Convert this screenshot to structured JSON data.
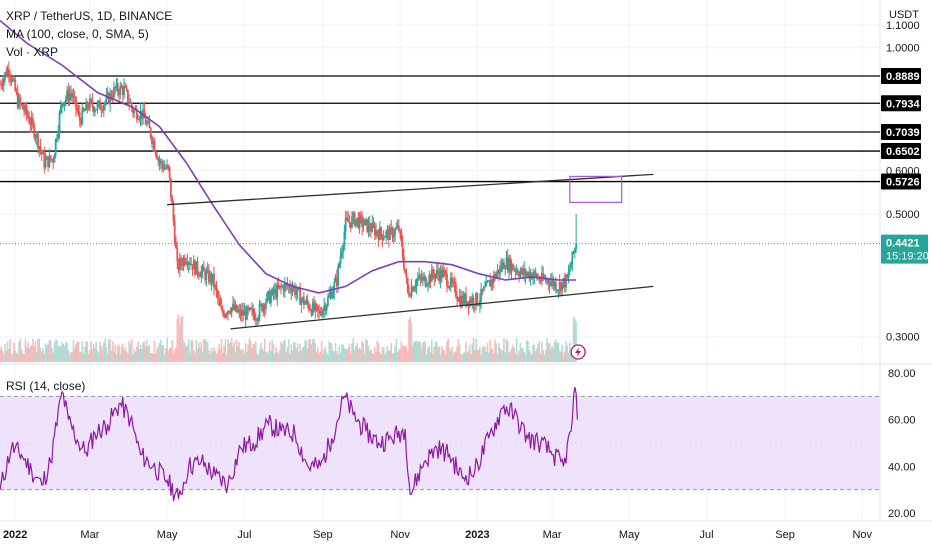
{
  "header": {
    "symbol_line": "XRP / TetherUS, 1D, BINANCE",
    "ma_label": "MA (100, close, 0, SMA, 5)",
    "vol_label": "Vol · XRP",
    "rsi_label": "RSI (14, close)"
  },
  "colors": {
    "up": "#26a69a",
    "down": "#ef5350",
    "ma": "#7e3fb6",
    "rsi": "#8e1aa0",
    "rsi_band": "#efe3fb",
    "price_line": "#26a69a",
    "levels": "#000000",
    "trend": "#303030",
    "box": "#a55ad6"
  },
  "chart_data": [
    {
      "type": "candlestick",
      "title": "XRP / TetherUS, 1D, BINANCE",
      "currency": "USDT",
      "scale": "log",
      "ylim": [
        0.27,
        1.22
      ],
      "y_ticks": [
        "1.1000",
        "1.0000",
        "0.6000",
        "0.5000",
        "0.3000"
      ],
      "x_ticks": [
        "2022",
        "Mar",
        "May",
        "Jul",
        "Sep",
        "Nov",
        "2023",
        "Mar",
        "May",
        "Jul",
        "Sep",
        "Nov"
      ],
      "x_tick_dates": [
        "2022-01-01",
        "2022-03-01",
        "2022-05-01",
        "2022-07-01",
        "2022-09-01",
        "2022-11-01",
        "2023-01-01",
        "2023-03-01",
        "2023-05-01",
        "2023-07-01",
        "2023-09-01",
        "2023-11-01"
      ],
      "xlim": [
        "2021-12-20",
        "2023-11-15"
      ],
      "series": [
        {
          "name": "XRP / TetherUS",
          "close_path": [
            [
              "2021-12-20",
              0.86
            ],
            [
              "2021-12-27",
              0.92
            ],
            [
              "2022-01-03",
              0.8
            ],
            [
              "2022-01-10",
              0.76
            ],
            [
              "2022-01-17",
              0.7
            ],
            [
              "2022-01-24",
              0.62
            ],
            [
              "2022-01-31",
              0.63
            ],
            [
              "2022-02-07",
              0.8
            ],
            [
              "2022-02-14",
              0.83
            ],
            [
              "2022-02-21",
              0.74
            ],
            [
              "2022-02-28",
              0.79
            ],
            [
              "2022-03-07",
              0.78
            ],
            [
              "2022-03-14",
              0.8
            ],
            [
              "2022-03-21",
              0.84
            ],
            [
              "2022-03-28",
              0.84
            ],
            [
              "2022-04-04",
              0.77
            ],
            [
              "2022-04-11",
              0.76
            ],
            [
              "2022-04-18",
              0.7
            ],
            [
              "2022-04-25",
              0.62
            ],
            [
              "2022-05-02",
              0.6
            ],
            [
              "2022-05-09",
              0.4
            ],
            [
              "2022-05-16",
              0.42
            ],
            [
              "2022-05-23",
              0.4
            ],
            [
              "2022-05-30",
              0.39
            ],
            [
              "2022-06-06",
              0.38
            ],
            [
              "2022-06-13",
              0.33
            ],
            [
              "2022-06-20",
              0.34
            ],
            [
              "2022-06-27",
              0.33
            ],
            [
              "2022-07-04",
              0.33
            ],
            [
              "2022-07-11",
              0.33
            ],
            [
              "2022-07-18",
              0.35
            ],
            [
              "2022-07-25",
              0.36
            ],
            [
              "2022-08-01",
              0.37
            ],
            [
              "2022-08-08",
              0.37
            ],
            [
              "2022-08-15",
              0.35
            ],
            [
              "2022-08-22",
              0.34
            ],
            [
              "2022-08-29",
              0.33
            ],
            [
              "2022-09-05",
              0.35
            ],
            [
              "2022-09-12",
              0.38
            ],
            [
              "2022-09-19",
              0.48
            ],
            [
              "2022-09-26",
              0.49
            ],
            [
              "2022-10-03",
              0.48
            ],
            [
              "2022-10-10",
              0.47
            ],
            [
              "2022-10-17",
              0.46
            ],
            [
              "2022-10-24",
              0.46
            ],
            [
              "2022-10-31",
              0.47
            ],
            [
              "2022-11-07",
              0.36
            ],
            [
              "2022-11-14",
              0.38
            ],
            [
              "2022-11-21",
              0.38
            ],
            [
              "2022-11-28",
              0.39
            ],
            [
              "2022-12-05",
              0.39
            ],
            [
              "2022-12-12",
              0.37
            ],
            [
              "2022-12-19",
              0.35
            ],
            [
              "2022-12-26",
              0.35
            ],
            [
              "2023-01-02",
              0.35
            ],
            [
              "2023-01-09",
              0.37
            ],
            [
              "2023-01-16",
              0.39
            ],
            [
              "2023-01-23",
              0.41
            ],
            [
              "2023-01-30",
              0.4
            ],
            [
              "2023-02-06",
              0.39
            ],
            [
              "2023-02-13",
              0.39
            ],
            [
              "2023-02-20",
              0.38
            ],
            [
              "2023-02-27",
              0.38
            ],
            [
              "2023-03-06",
              0.37
            ],
            [
              "2023-03-13",
              0.38
            ],
            [
              "2023-03-20",
              0.4421
            ]
          ],
          "last_price": "0.4421",
          "countdown": "15:19:20"
        }
      ],
      "moving_average": {
        "name": "MA (100, close, 0, SMA, 5)",
        "points": [
          [
            "2021-12-20",
            1.12
          ],
          [
            "2022-01-10",
            1.02
          ],
          [
            "2022-02-07",
            0.93
          ],
          [
            "2022-03-07",
            0.83
          ],
          [
            "2022-04-04",
            0.78
          ],
          [
            "2022-04-25",
            0.72
          ],
          [
            "2022-05-16",
            0.62
          ],
          [
            "2022-06-06",
            0.52
          ],
          [
            "2022-06-27",
            0.44
          ],
          [
            "2022-07-18",
            0.39
          ],
          [
            "2022-08-08",
            0.37
          ],
          [
            "2022-08-29",
            0.36
          ],
          [
            "2022-09-19",
            0.37
          ],
          [
            "2022-10-10",
            0.395
          ],
          [
            "2022-10-31",
            0.41
          ],
          [
            "2022-11-21",
            0.41
          ],
          [
            "2022-12-12",
            0.405
          ],
          [
            "2023-01-02",
            0.39
          ],
          [
            "2023-01-23",
            0.38
          ],
          [
            "2023-02-13",
            0.385
          ],
          [
            "2023-03-06",
            0.38
          ],
          [
            "2023-03-20",
            0.38
          ]
        ]
      },
      "horizontal_levels": [
        "0.8889",
        "0.7934",
        "0.7039",
        "0.6502",
        "0.5726"
      ],
      "trendlines": [
        {
          "from": [
            "2022-05-01",
            0.52
          ],
          "to": [
            "2023-05-20",
            0.59
          ]
        },
        {
          "from": [
            "2022-06-20",
            0.31
          ],
          "to": [
            "2023-05-20",
            0.37
          ]
        }
      ],
      "target_box": {
        "x": [
          "2023-03-15",
          "2023-04-25"
        ],
        "y": [
          0.525,
          0.585
        ]
      },
      "volume": {
        "name": "Vol · XRP"
      }
    },
    {
      "type": "line",
      "title": "RSI (14, close)",
      "ylim": [
        17,
        83
      ],
      "y_ticks": [
        "80.00",
        "60.00",
        "40.00",
        "20.00"
      ],
      "band": [
        30,
        70
      ],
      "series": [
        {
          "name": "RSI (14, close)",
          "points": [
            [
              "2021-12-20",
              30
            ],
            [
              "2021-12-29",
              48
            ],
            [
              "2022-01-06",
              45
            ],
            [
              "2022-01-14",
              38
            ],
            [
              "2022-01-22",
              32
            ],
            [
              "2022-01-29",
              42
            ],
            [
              "2022-02-07",
              72
            ],
            [
              "2022-02-12",
              60
            ],
            [
              "2022-02-20",
              50
            ],
            [
              "2022-02-26",
              46
            ],
            [
              "2022-03-05",
              54
            ],
            [
              "2022-03-15",
              58
            ],
            [
              "2022-03-25",
              67
            ],
            [
              "2022-04-02",
              60
            ],
            [
              "2022-04-10",
              45
            ],
            [
              "2022-04-20",
              40
            ],
            [
              "2022-05-01",
              34
            ],
            [
              "2022-05-10",
              26
            ],
            [
              "2022-05-18",
              40
            ],
            [
              "2022-05-28",
              42
            ],
            [
              "2022-06-08",
              36
            ],
            [
              "2022-06-18",
              32
            ],
            [
              "2022-06-28",
              48
            ],
            [
              "2022-07-08",
              50
            ],
            [
              "2022-07-20",
              58
            ],
            [
              "2022-07-30",
              55
            ],
            [
              "2022-08-10",
              54
            ],
            [
              "2022-08-20",
              40
            ],
            [
              "2022-08-30",
              40
            ],
            [
              "2022-09-08",
              52
            ],
            [
              "2022-09-18",
              70
            ],
            [
              "2022-09-25",
              62
            ],
            [
              "2022-10-05",
              55
            ],
            [
              "2022-10-15",
              50
            ],
            [
              "2022-10-25",
              52
            ],
            [
              "2022-11-05",
              56
            ],
            [
              "2022-11-09",
              28
            ],
            [
              "2022-11-20",
              42
            ],
            [
              "2022-11-30",
              48
            ],
            [
              "2022-12-10",
              45
            ],
            [
              "2022-12-20",
              35
            ],
            [
              "2022-12-30",
              38
            ],
            [
              "2023-01-10",
              52
            ],
            [
              "2023-01-22",
              66
            ],
            [
              "2023-01-30",
              62
            ],
            [
              "2023-02-10",
              52
            ],
            [
              "2023-02-20",
              50
            ],
            [
              "2023-03-02",
              45
            ],
            [
              "2023-03-10",
              40
            ],
            [
              "2023-03-16",
              55
            ],
            [
              "2023-03-19",
              74
            ],
            [
              "2023-03-21",
              60
            ]
          ]
        }
      ]
    }
  ]
}
